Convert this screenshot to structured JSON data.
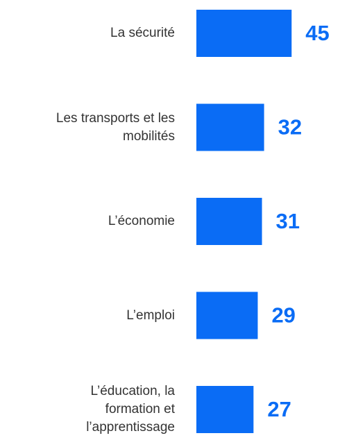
{
  "chart_data": {
    "type": "bar",
    "orientation": "horizontal",
    "categories": [
      "La sécurité",
      "Les transports et les\nmobilités",
      "L’économie",
      "L’emploi",
      "L’éducation, la\nformation et\nl’apprentissage"
    ],
    "values": [
      45,
      32,
      31,
      29,
      27
    ],
    "color": "#0a6cf5"
  }
}
